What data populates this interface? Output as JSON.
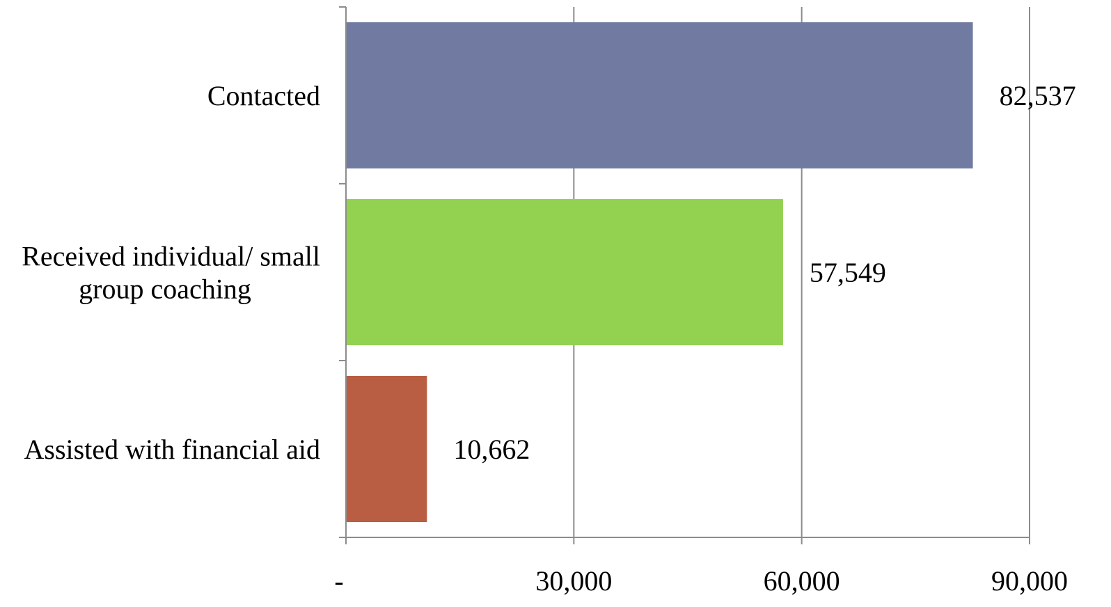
{
  "chart_data": {
    "type": "bar",
    "orientation": "horizontal",
    "title": "",
    "xlabel": "",
    "ylabel": "",
    "categories": [
      [
        "Contacted"
      ],
      [
        "Received individual/ small",
        "group coaching"
      ],
      [
        "Assisted with financial aid"
      ]
    ],
    "values": [
      82537,
      57549,
      10662
    ],
    "value_labels": [
      "82,537",
      "57,549",
      "10,662"
    ],
    "bar_colors": [
      "#717ba1",
      "#93d150",
      "#b95e43"
    ],
    "xlim": [
      0,
      90000
    ],
    "x_ticks": [
      0,
      30000,
      60000,
      90000
    ],
    "x_tick_labels": [
      "-",
      "30,000",
      "60,000",
      "90,000"
    ],
    "grid": "vertical",
    "legend": "none"
  }
}
